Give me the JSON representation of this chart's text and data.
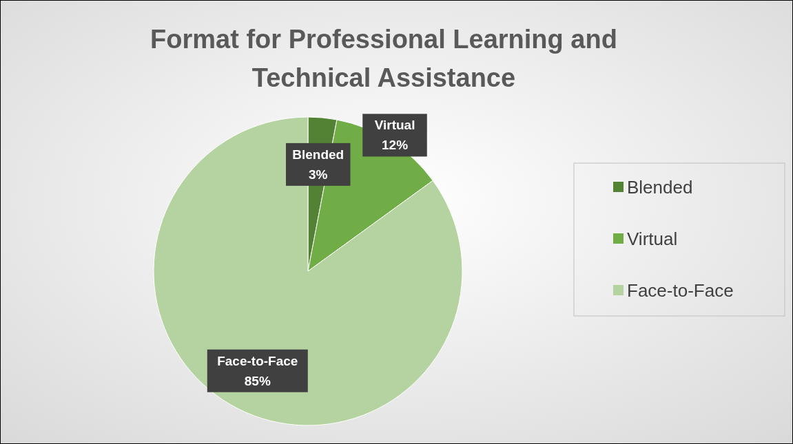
{
  "chart_data": {
    "type": "pie",
    "title": "Format for Professional Learning and Technical Assistance",
    "categories": [
      "Blended",
      "Virtual",
      "Face-to-Face"
    ],
    "values": [
      3,
      12,
      85
    ],
    "value_labels": [
      "3%",
      "12%",
      "85%"
    ],
    "colors": [
      "#548235",
      "#70ad47",
      "#b5d3a0"
    ],
    "legend": "right"
  }
}
